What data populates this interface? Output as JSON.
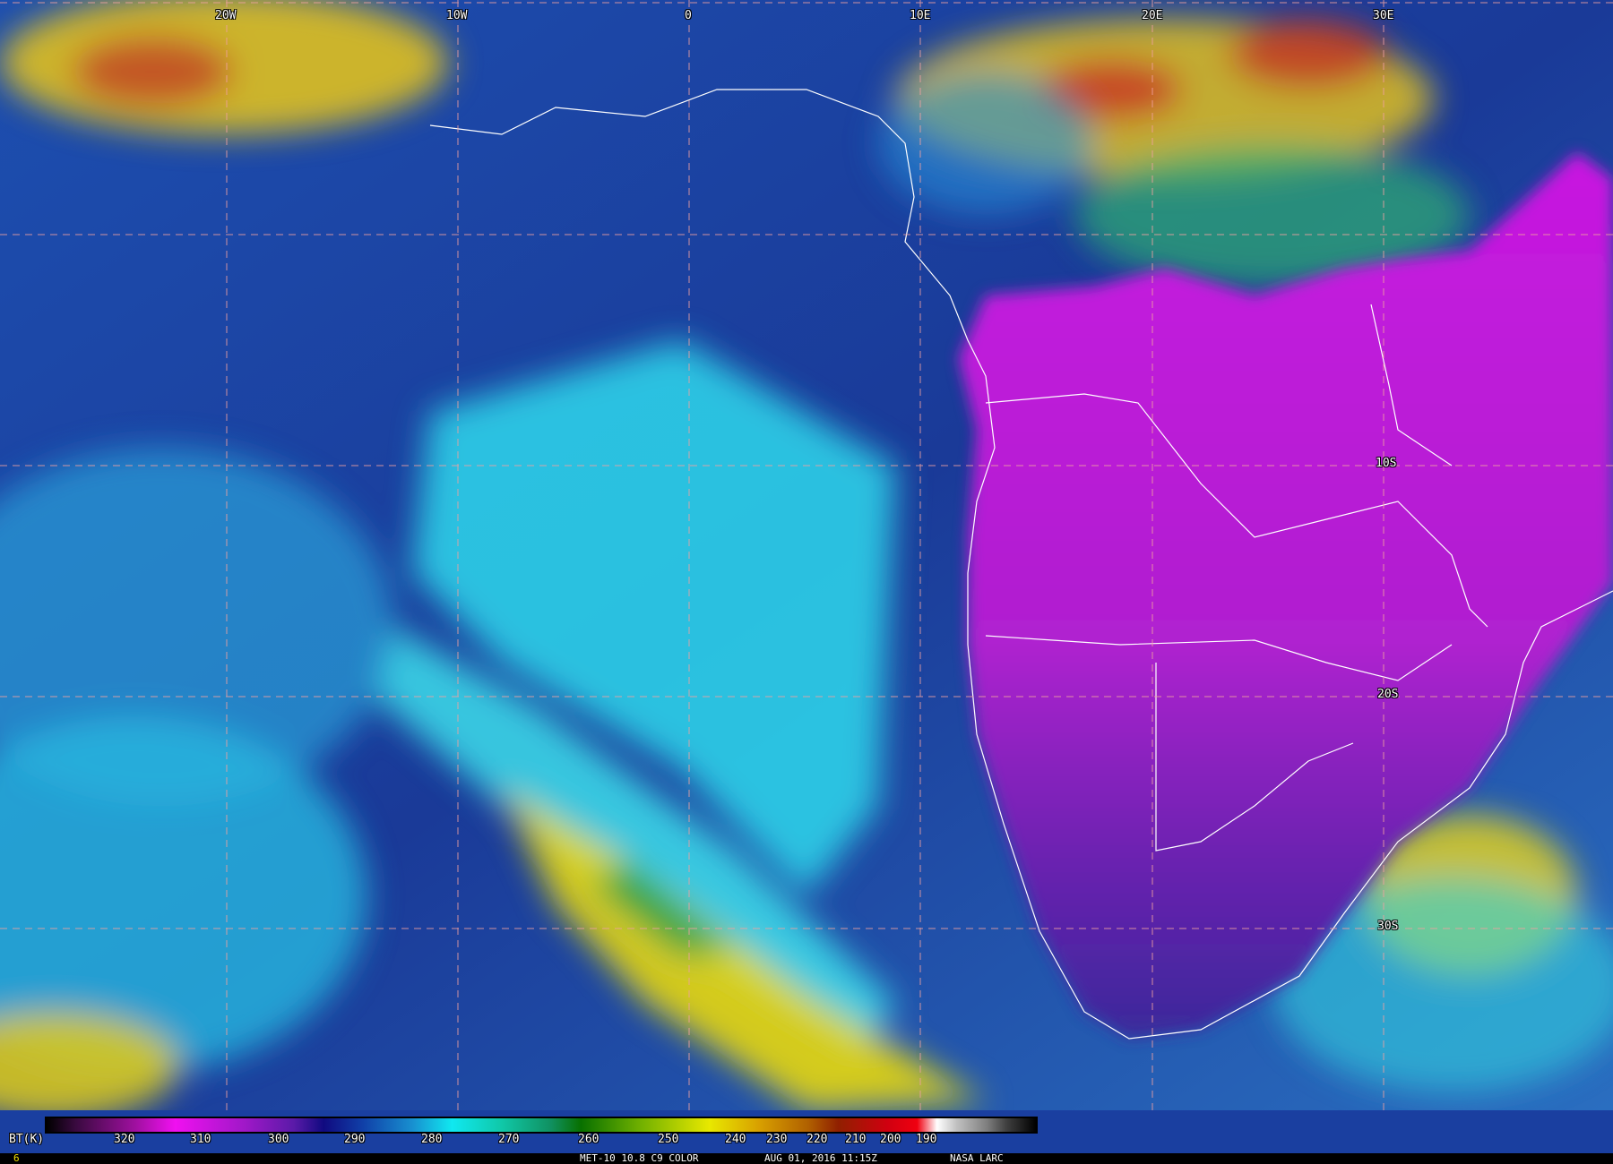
{
  "map": {
    "longitude_labels": [
      "20W",
      "10W",
      "0",
      "10E",
      "20E",
      "30E"
    ],
    "latitude_labels": [
      "10S",
      "20S",
      "30S"
    ],
    "colors": {
      "ocean": "#1a3fa0",
      "land_warm": "#d020e0",
      "cloud_cyan": "#20e0f0",
      "cloud_cold": "#f0e000",
      "gridline": "#f0a0a0",
      "coastline": "#ffffff"
    }
  },
  "colorbar": {
    "label": "BT(K)",
    "ticks": [
      "320",
      "310",
      "300",
      "290",
      "280",
      "270",
      "260",
      "250",
      "240",
      "230",
      "220",
      "210",
      "200",
      "190"
    ],
    "range_k": [
      330,
      175
    ]
  },
  "footer": {
    "frame": "6",
    "product": "MET-10 10.8 C9 COLOR",
    "datetime": "AUG 01, 2016 11:15Z",
    "source": "NASA LARC"
  }
}
